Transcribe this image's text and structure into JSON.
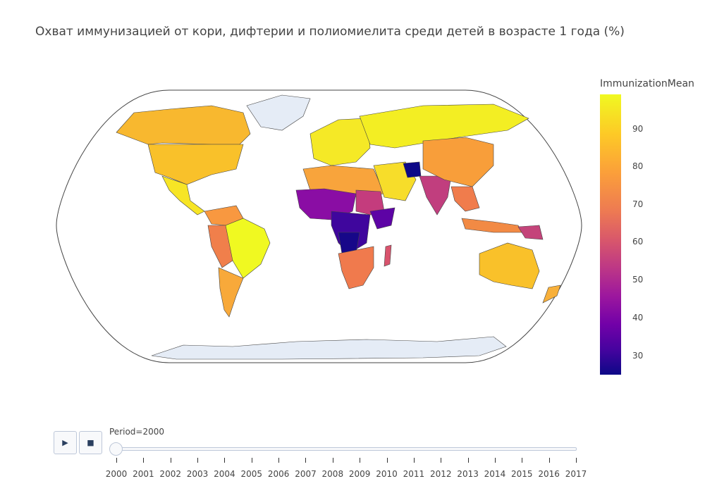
{
  "title": "Охват иммунизацией от кори, дифтерии и полиомиелита среди детей в возрасте 1 года (%)",
  "colorbar": {
    "title": "ImmunizationMean",
    "ticks": [
      "90",
      "80",
      "70",
      "60",
      "50",
      "40",
      "30"
    ]
  },
  "slider": {
    "current_label": "Period=2000",
    "years": [
      "2000",
      "2001",
      "2002",
      "2003",
      "2004",
      "2005",
      "2006",
      "2007",
      "2008",
      "2009",
      "2010",
      "2011",
      "2012",
      "2013",
      "2014",
      "2015",
      "2016",
      "2017"
    ]
  },
  "controls": {
    "play_icon": "▶",
    "stop_icon": "■"
  },
  "colors": {
    "land_nodata": "#e5ecf6",
    "border": "#444444",
    "scale_low": "#0d0887",
    "scale_high": "#f0f921"
  }
}
